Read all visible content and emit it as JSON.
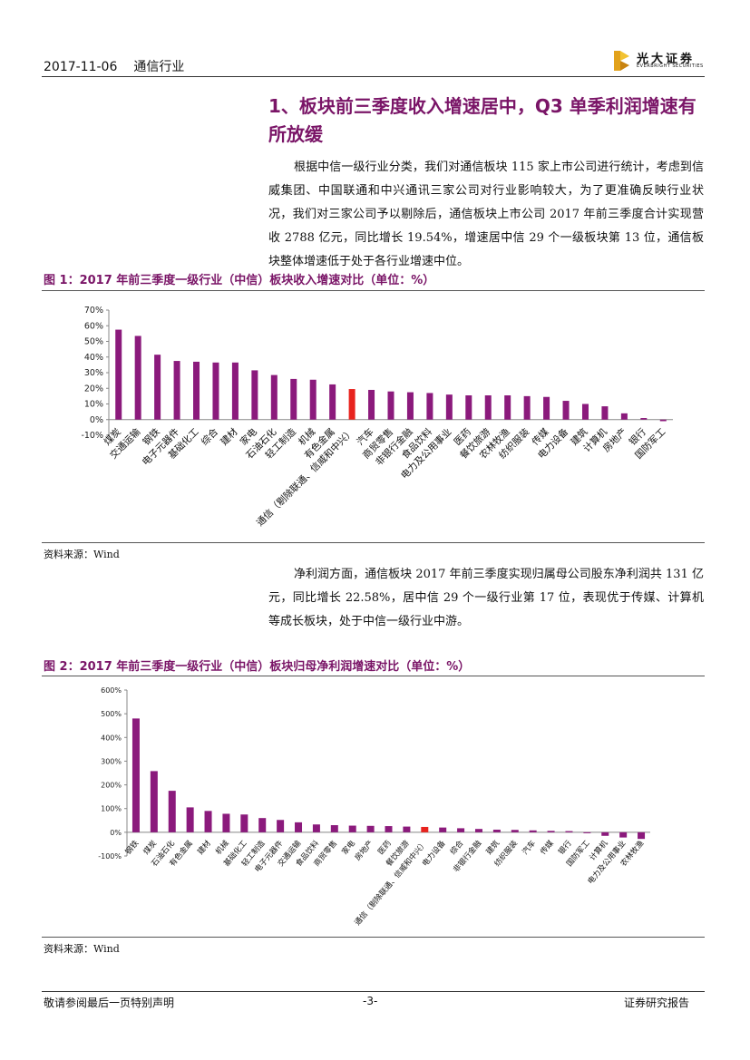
{
  "header": {
    "date": "2017-11-06",
    "industry": "通信行业",
    "logo_cn": "光大证券",
    "logo_en": "EVERBRIGHT SECURITIES"
  },
  "section": {
    "title": "1、板块前三季度收入增速居中，Q3 单季利润增速有所放缓",
    "para1": "根据中信一级行业分类，我们对通信板块 115 家上市公司进行统计，考虑到信威集团、中国联通和中兴通讯三家公司对行业影响较大，为了更准确反映行业状况，我们对三家公司予以剔除后，通信板块上市公司 2017 年前三季度合计实现营收 2788 亿元，同比增长 19.54%，增速居中信 29 个一级板块第 13 位，通信板块整体增速低于处于各行业增速中位。",
    "para2": "净利润方面，通信板块 2017 年前三季度实现归属母公司股东净利润共 131 亿元，同比增长 22.58%，居中信 29 个一级行业第 17 位，表现优于传媒、计算机等成长板块，处于中信一级行业中游。"
  },
  "fig1": {
    "title": "图 1：2017 年前三季度一级行业（中信）板块收入增速对比（单位：%）",
    "source": "资料来源：Wind"
  },
  "fig2": {
    "title": "图 2：2017 年前三季度一级行业（中信）板块归母净利润增速对比（单位：%）",
    "source": "资料来源：Wind"
  },
  "chart_data": [
    {
      "type": "bar",
      "categories": [
        "煤炭",
        "交通运输",
        "钢铁",
        "电子元器件",
        "基础化工",
        "综合",
        "建材",
        "家电",
        "石油石化",
        "轻工制造",
        "机械",
        "有色金属",
        "通信（剔除联通、信威和中兴）",
        "汽车",
        "商贸零售",
        "非银行金融",
        "食品饮料",
        "电力及公用事业",
        "医药",
        "餐饮旅游",
        "农林牧渔",
        "纺织服装",
        "传媒",
        "电力设备",
        "建筑",
        "计算机",
        "房地产",
        "银行",
        "国防军工"
      ],
      "values": [
        57.5,
        53.5,
        41.5,
        37.5,
        37,
        36.5,
        36.5,
        31.5,
        28.5,
        26,
        25.5,
        22.5,
        19.54,
        19,
        18,
        17.5,
        17,
        16,
        15.5,
        15.5,
        15.5,
        15,
        14.5,
        12,
        10,
        8.5,
        4,
        1,
        -1
      ],
      "highlight_index": 12,
      "ylim": [
        -10,
        70
      ],
      "yticks": [
        "-10%",
        "0%",
        "10%",
        "20%",
        "30%",
        "40%",
        "50%",
        "60%",
        "70%"
      ],
      "colors": {
        "bar": "#8b1a7c",
        "highlight": "#e8231e"
      }
    },
    {
      "type": "bar",
      "categories": [
        "钢铁",
        "煤炭",
        "石油石化",
        "有色金属",
        "建材",
        "机械",
        "基础化工",
        "轻工制造",
        "电子元器件",
        "交通运输",
        "食品饮料",
        "商贸零售",
        "家电",
        "房地产",
        "医药",
        "餐饮旅游",
        "通信（剔除联通、信威和中兴）",
        "电力设备",
        "综合",
        "非银行金融",
        "建筑",
        "纺织服装",
        "汽车",
        "传媒",
        "银行",
        "国防军工",
        "计算机",
        "电力及公用事业",
        "农林牧渔"
      ],
      "values": [
        480,
        258,
        175,
        105,
        90,
        78,
        75,
        60,
        52,
        42,
        33,
        30,
        28,
        27,
        26,
        24,
        22.58,
        20,
        17,
        14,
        11,
        10,
        8,
        6,
        5,
        -4,
        -15,
        -22,
        -28
      ],
      "highlight_index": 16,
      "ylim": [
        -100,
        600
      ],
      "yticks": [
        "-100%",
        "0%",
        "100%",
        "200%",
        "300%",
        "400%",
        "500%",
        "600%"
      ],
      "colors": {
        "bar": "#8b1a7c",
        "highlight": "#e8231e"
      }
    }
  ],
  "footer": {
    "disclaimer": "敬请参阅最后一页特别声明",
    "page": "-3-",
    "report_type": "证券研究报告"
  }
}
